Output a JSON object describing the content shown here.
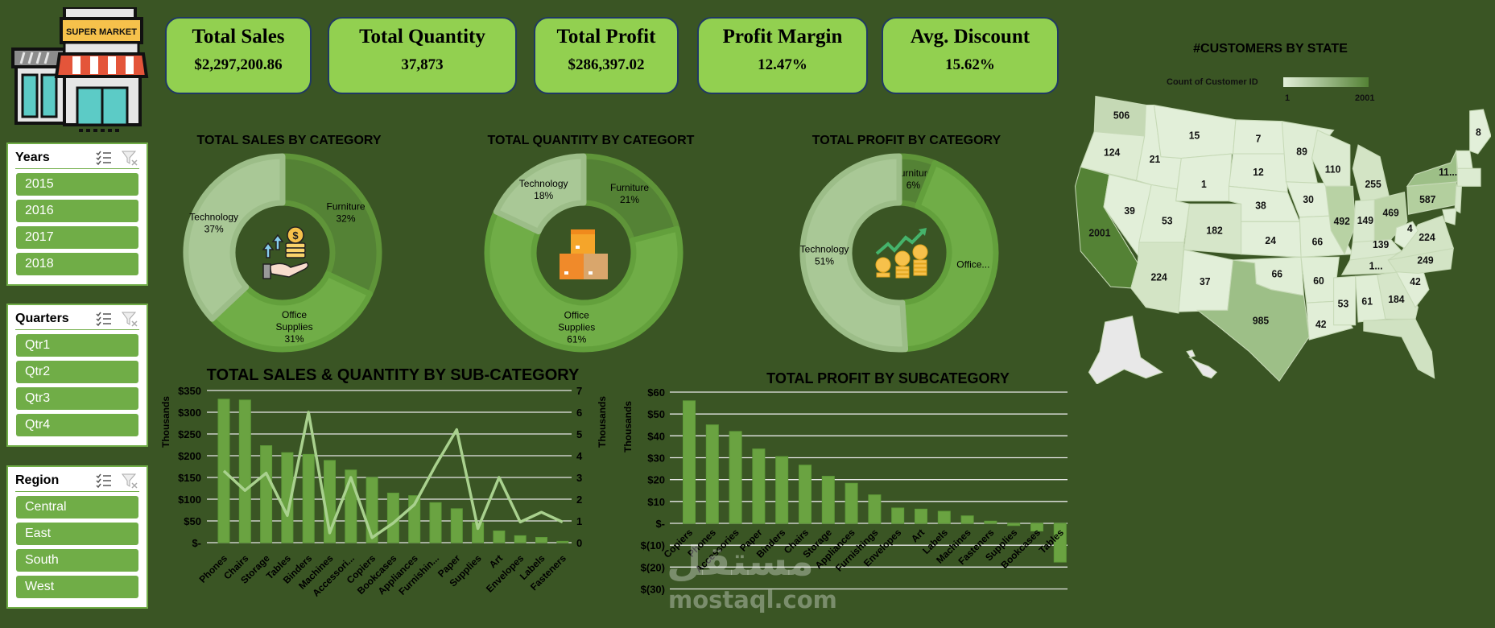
{
  "logo": {
    "sign_text": "SUPER MARKET"
  },
  "kpis": [
    {
      "title": "Total Sales",
      "value": "$2,297,200.86"
    },
    {
      "title": "Total Quantity",
      "value": "37,873"
    },
    {
      "title": "Total Profit",
      "value": "$286,397.02"
    },
    {
      "title": "Profit Margin",
      "value": "12.47%"
    },
    {
      "title": "Avg. Discount",
      "value": "15.62%"
    }
  ],
  "slicers": [
    {
      "title": "Years",
      "items": [
        "2015",
        "2016",
        "2017",
        "2018"
      ]
    },
    {
      "title": "Quarters",
      "items": [
        "Qtr1",
        "Qtr2",
        "Qtr3",
        "Qtr4"
      ]
    },
    {
      "title": "Region",
      "items": [
        "Central",
        "East",
        "South",
        "West"
      ]
    }
  ],
  "colors": {
    "background": "#3a5524",
    "kpi_card": "#92d050",
    "kpi_border": "#1f3864",
    "slicer_item": "#70ad47",
    "furniture": "#548235",
    "office_supplies": "#70ad47",
    "technology": "#a9c896",
    "bar": "#6aa341",
    "line": "#a9d18e"
  },
  "chart_data": [
    {
      "type": "pie",
      "title": "TOTAL SALES BY CATEGORY",
      "donut": true,
      "slices": [
        {
          "name": "Furniture",
          "value": 32,
          "pct_label": "32%"
        },
        {
          "name": "Office Supplies",
          "value": 31,
          "pct_label": "31%"
        },
        {
          "name": "Technology",
          "value": 37,
          "pct_label": "37%"
        }
      ]
    },
    {
      "type": "pie",
      "title": "TOTAL QUANTITY BY CATEGORT",
      "donut": true,
      "slices": [
        {
          "name": "Furniture",
          "value": 21,
          "pct_label": "21%"
        },
        {
          "name": "Office Supplies",
          "value": 61,
          "pct_label": "61%"
        },
        {
          "name": "Technology",
          "value": 18,
          "pct_label": "18%"
        }
      ]
    },
    {
      "type": "pie",
      "title": "TOTAL PROFIT BY CATEGORY",
      "donut": true,
      "slices": [
        {
          "name": "Furniture",
          "value": 6,
          "pct_label": "6%"
        },
        {
          "name": "Office...",
          "value": 43,
          "pct_label": ""
        },
        {
          "name": "Technology",
          "value": 51,
          "pct_label": "51%"
        }
      ]
    },
    {
      "type": "bar",
      "title": "TOTAL SALES & QUANTITY BY SUB-CATEGORY",
      "ylabel": "Thousands",
      "y2label": "Thousands",
      "ylim": [
        0,
        350
      ],
      "y2lim": [
        0,
        7
      ],
      "grid": true,
      "yticks": [
        0,
        50,
        100,
        150,
        200,
        250,
        300,
        350
      ],
      "ytick_labels": [
        "$-",
        "$50",
        "$100",
        "$150",
        "$200",
        "$250",
        "$300",
        "$350"
      ],
      "y2ticks": [
        0,
        1,
        2,
        3,
        4,
        5,
        6,
        7
      ],
      "y2tick_labels": [
        "0",
        "1",
        "2",
        "3",
        "4",
        "5",
        "6",
        "7"
      ],
      "categories": [
        "Phones",
        "Chairs",
        "Storage",
        "Tables",
        "Binders",
        "Machines",
        "Accessori...",
        "Copiers",
        "Bookcases",
        "Appliances",
        "Furnishin...",
        "Paper",
        "Supplies",
        "Art",
        "Envelopes",
        "Labels",
        "Fasteners"
      ],
      "series": [
        {
          "type": "bar",
          "axis": "left",
          "values": [
            330,
            328,
            223,
            207,
            203,
            189,
            167,
            150,
            114,
            108,
            92,
            78,
            46,
            27,
            16,
            12,
            3
          ]
        },
        {
          "type": "line",
          "axis": "right",
          "values": [
            3.3,
            2.4,
            3.2,
            1.25,
            6.0,
            0.45,
            3.0,
            0.23,
            0.9,
            1.75,
            3.55,
            5.2,
            0.65,
            3.0,
            0.95,
            1.4,
            0.95
          ]
        }
      ]
    },
    {
      "type": "bar",
      "title": "TOTAL PROFIT BY SUBCATEGORY",
      "ylabel": "Thousands",
      "ylim": [
        -30,
        60
      ],
      "grid": true,
      "yticks": [
        -30,
        -20,
        -10,
        0,
        10,
        20,
        30,
        40,
        50,
        60
      ],
      "ytick_labels": [
        "$(30)",
        "$(20)",
        "$(10)",
        "$-",
        "$10",
        "$20",
        "$30",
        "$40",
        "$50",
        "$60"
      ],
      "categories": [
        "Copiers",
        "Phones",
        "Accessories",
        "Paper",
        "Binders",
        "Chairs",
        "Storage",
        "Appliances",
        "Furnishings",
        "Envelopes",
        "Art",
        "Labels",
        "Machines",
        "Fasteners",
        "Supplies",
        "Bookcases",
        "Tables"
      ],
      "series": [
        {
          "type": "bar",
          "axis": "left",
          "values": [
            56,
            45,
            42,
            34,
            30.5,
            26.6,
            21.5,
            18.3,
            13,
            7,
            6.5,
            5.5,
            3.4,
            1,
            -1,
            -3.5,
            -17.7
          ]
        }
      ]
    }
  ],
  "map": {
    "title": "#CUSTOMERS BY STATE",
    "legend_label": "Count of Customer ID",
    "legend_min": "1",
    "legend_max": "2001",
    "legend_colors": [
      "#e2efd9",
      "#548235"
    ],
    "states": [
      {
        "label": "506",
        "fill": "#c5d9b5"
      },
      {
        "label": "124",
        "fill": "#deecd3"
      },
      {
        "label": "2001",
        "fill": "#548235"
      },
      {
        "label": "39",
        "fill": "#e2efd9"
      },
      {
        "label": "21",
        "fill": "#e2efd9"
      },
      {
        "label": "15",
        "fill": "#e2efd9"
      },
      {
        "label": "1",
        "fill": "#e2efd9"
      },
      {
        "label": "53",
        "fill": "#e0eed6"
      },
      {
        "label": "224",
        "fill": "#d3e4c5"
      },
      {
        "label": "182",
        "fill": "#d6e6c9"
      },
      {
        "label": "37",
        "fill": "#e2efd9"
      },
      {
        "label": "7",
        "fill": "#e2efd9"
      },
      {
        "label": "12",
        "fill": "#e2efd9"
      },
      {
        "label": "38",
        "fill": "#e2efd9"
      },
      {
        "label": "24",
        "fill": "#e2efd9"
      },
      {
        "label": "66",
        "fill": "#e0eed6"
      },
      {
        "label": "985",
        "fill": "#9dbf87"
      },
      {
        "label": "89",
        "fill": "#dfedd5"
      },
      {
        "label": "30",
        "fill": "#e2efd9"
      },
      {
        "label": "66",
        "fill": "#e0eed6"
      },
      {
        "label": "60",
        "fill": "#e0eed6"
      },
      {
        "label": "42",
        "fill": "#e1eed7"
      },
      {
        "label": "110",
        "fill": "#dcebd1"
      },
      {
        "label": "492",
        "fill": "#b8d2a4"
      },
      {
        "label": "255",
        "fill": "#d3e4c5"
      },
      {
        "label": "149",
        "fill": "#d9e9ce"
      },
      {
        "label": "469",
        "fill": "#bcd4a8"
      },
      {
        "label": "139",
        "fill": "#dae9cf"
      },
      {
        "label": "1...",
        "fill": "#d6e6c9"
      },
      {
        "label": "53",
        "fill": "#e0eed6"
      },
      {
        "label": "61",
        "fill": "#e0eed6"
      },
      {
        "label": "184",
        "fill": "#d6e6c9"
      },
      {
        "label": "",
        "fill": "#d0e2c2"
      },
      {
        "label": "42",
        "fill": "#e1eed7"
      },
      {
        "label": "249",
        "fill": "#d3e4c5"
      },
      {
        "label": "224",
        "fill": "#d3e4c5"
      },
      {
        "label": "4",
        "fill": "#e2efd9"
      },
      {
        "label": "587",
        "fill": "#b3cf9e"
      },
      {
        "label": "11...",
        "fill": "#9dbf87"
      },
      {
        "label": "8",
        "fill": "#e2efd9"
      },
      {
        "label": "",
        "fill": "#e0eed6"
      },
      {
        "label": "",
        "fill": "#dcebd1"
      },
      {
        "label": "",
        "fill": "#d8e8cc"
      },
      {
        "label": "",
        "fill": "#dcebd1"
      },
      {
        "label": "",
        "fill": "#e8e8e8"
      },
      {
        "label": "",
        "fill": "#e8e8e8"
      }
    ]
  },
  "watermark": {
    "arabic": "مستقل",
    "latin": "mostaql.com"
  }
}
